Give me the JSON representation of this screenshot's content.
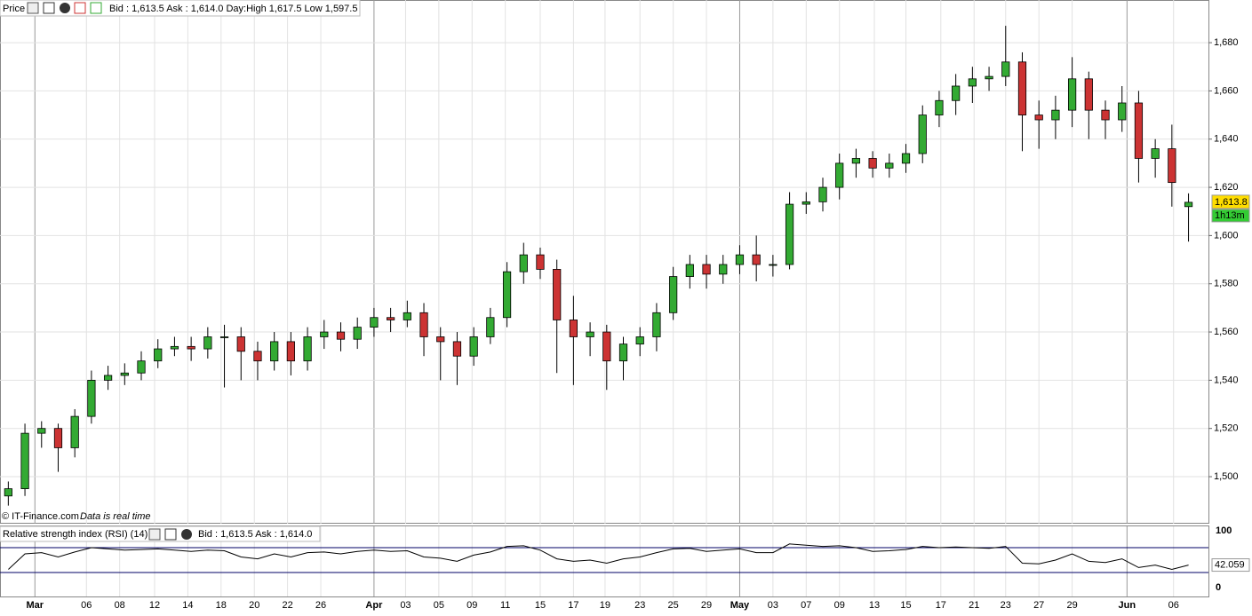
{
  "header": {
    "title": "Price",
    "quote": "Bid : 1,613.5 Ask : 1,614.0 Day:High 1,617.5 Low 1,597.5"
  },
  "footer": {
    "source": "© IT-Finance.com",
    "note": "Data is real time"
  },
  "chart_data": [
    {
      "type": "candlestick",
      "grid": true,
      "up_color": "#33aa33",
      "down_color": "#cc3333",
      "x": [
        0,
        1,
        2,
        3,
        4,
        5,
        6,
        7,
        8,
        9,
        10,
        11,
        12,
        13,
        14,
        15,
        16,
        17,
        18,
        19,
        20,
        21,
        22,
        23,
        24,
        25,
        26,
        27,
        28,
        29,
        30,
        31,
        32,
        33,
        34,
        35,
        36,
        37,
        38,
        39,
        40,
        41,
        42,
        43,
        44,
        45,
        46,
        47,
        48,
        49,
        50,
        51,
        52,
        53,
        54,
        55,
        56,
        57,
        58,
        59,
        60,
        61,
        62,
        63,
        64,
        65,
        66,
        67,
        68,
        69,
        70,
        71
      ],
      "open": [
        1492,
        1495,
        1518,
        1520,
        1512,
        1525,
        1540,
        1542,
        1543,
        1548,
        1553,
        1554,
        1553,
        1558,
        1558,
        1552,
        1548,
        1556,
        1548,
        1558,
        1560,
        1557,
        1562,
        1566,
        1565,
        1568,
        1558,
        1556,
        1550,
        1558,
        1566,
        1585,
        1592,
        1586,
        1565,
        1558,
        1560,
        1548,
        1555,
        1558,
        1568,
        1583,
        1588,
        1584,
        1588,
        1592,
        1588,
        1588,
        1613,
        1614,
        1620,
        1630,
        1632,
        1628,
        1630,
        1634,
        1650,
        1656,
        1662,
        1665,
        1666,
        1672,
        1650,
        1648,
        1652,
        1665,
        1652,
        1648,
        1655,
        1632,
        1636,
        1612
      ],
      "high": [
        1498,
        1522,
        1523,
        1522,
        1528,
        1544,
        1546,
        1547,
        1552,
        1557,
        1558,
        1558,
        1562,
        1563,
        1562,
        1556,
        1560,
        1560,
        1562,
        1565,
        1564,
        1566,
        1570,
        1570,
        1573,
        1572,
        1562,
        1560,
        1562,
        1570,
        1589,
        1597,
        1595,
        1590,
        1575,
        1564,
        1563,
        1558,
        1562,
        1572,
        1587,
        1592,
        1592,
        1592,
        1596,
        1600,
        1592,
        1618,
        1618,
        1624,
        1634,
        1636,
        1635,
        1634,
        1638,
        1654,
        1660,
        1667,
        1670,
        1670,
        1687,
        1676,
        1656,
        1658,
        1674,
        1668,
        1656,
        1662,
        1660,
        1640,
        1646,
        1617.5
      ],
      "low": [
        1488,
        1492,
        1512,
        1502,
        1508,
        1522,
        1536,
        1538,
        1540,
        1545,
        1550,
        1548,
        1549,
        1537,
        1540,
        1540,
        1544,
        1542,
        1544,
        1553,
        1552,
        1553,
        1558,
        1560,
        1562,
        1550,
        1540,
        1538,
        1546,
        1555,
        1562,
        1580,
        1582,
        1543,
        1538,
        1550,
        1536,
        1540,
        1550,
        1552,
        1565,
        1578,
        1578,
        1580,
        1584,
        1581,
        1583,
        1586,
        1609,
        1610,
        1615,
        1624,
        1624,
        1624,
        1626,
        1630,
        1645,
        1650,
        1655,
        1660,
        1662,
        1635,
        1636,
        1640,
        1645,
        1640,
        1640,
        1643,
        1622,
        1624,
        1612,
        1597.5
      ],
      "close": [
        1495,
        1518,
        1520,
        1512,
        1525,
        1540,
        1542,
        1543,
        1548,
        1553,
        1554,
        1553,
        1558,
        1558,
        1552,
        1548,
        1556,
        1548,
        1558,
        1560,
        1557,
        1562,
        1566,
        1565,
        1568,
        1558,
        1556,
        1550,
        1558,
        1566,
        1585,
        1592,
        1586,
        1565,
        1558,
        1560,
        1548,
        1555,
        1558,
        1568,
        1583,
        1588,
        1584,
        1588,
        1592,
        1588,
        1588,
        1613,
        1614,
        1620,
        1630,
        1632,
        1628,
        1630,
        1634,
        1650,
        1656,
        1662,
        1665,
        1666,
        1672,
        1650,
        1648,
        1652,
        1665,
        1652,
        1648,
        1655,
        1632,
        1636,
        1622,
        1613.8
      ],
      "last_price_label": "1,613.8",
      "countdown": "1h13m",
      "xlim": [
        -0.5,
        72.2
      ],
      "ylim": [
        1480.5,
        1697.7
      ],
      "yticks": [
        {
          "value": 1500,
          "label": "1,500"
        },
        {
          "value": 1520,
          "label": "1,520"
        },
        {
          "value": 1540,
          "label": "1,540"
        },
        {
          "value": 1560,
          "label": "1,560"
        },
        {
          "value": 1580,
          "label": "1,580"
        },
        {
          "value": 1600,
          "label": "1,600"
        },
        {
          "value": 1620,
          "label": "1,620"
        },
        {
          "value": 1640,
          "label": "1,640"
        },
        {
          "value": 1660,
          "label": "1,660"
        },
        {
          "value": 1680,
          "label": "1,680"
        }
      ],
      "xticks": [
        {
          "value": 1.6,
          "label": "Mar"
        },
        {
          "value": 4.7,
          "label": "06"
        },
        {
          "value": 6.7,
          "label": "08"
        },
        {
          "value": 8.8,
          "label": "12"
        },
        {
          "value": 10.8,
          "label": "14"
        },
        {
          "value": 12.8,
          "label": "18"
        },
        {
          "value": 14.8,
          "label": "20"
        },
        {
          "value": 16.8,
          "label": "22"
        },
        {
          "value": 18.8,
          "label": "26"
        },
        {
          "value": 22.0,
          "label": "Apr"
        },
        {
          "value": 23.9,
          "label": "03"
        },
        {
          "value": 25.9,
          "label": "05"
        },
        {
          "value": 27.9,
          "label": "09"
        },
        {
          "value": 29.9,
          "label": "11"
        },
        {
          "value": 32.0,
          "label": "15"
        },
        {
          "value": 34.0,
          "label": "17"
        },
        {
          "value": 35.9,
          "label": "19"
        },
        {
          "value": 38.0,
          "label": "23"
        },
        {
          "value": 40.0,
          "label": "25"
        },
        {
          "value": 42.0,
          "label": "29"
        },
        {
          "value": 44.0,
          "label": "May"
        },
        {
          "value": 46.0,
          "label": "03"
        },
        {
          "value": 48.0,
          "label": "07"
        },
        {
          "value": 50.0,
          "label": "09"
        },
        {
          "value": 52.1,
          "label": "13"
        },
        {
          "value": 54.0,
          "label": "15"
        },
        {
          "value": 56.1,
          "label": "17"
        },
        {
          "value": 58.1,
          "label": "21"
        },
        {
          "value": 60.0,
          "label": "23"
        },
        {
          "value": 62.0,
          "label": "27"
        },
        {
          "value": 64.0,
          "label": "29"
        },
        {
          "value": 67.3,
          "label": "Jun"
        },
        {
          "value": 70.1,
          "label": "06"
        }
      ]
    },
    {
      "type": "line",
      "title": "Relative strength index (RSI) (14)",
      "quote": "Bid : 1,613.5 Ask : 1,614.0",
      "color": "#000000",
      "level_color": "#000066",
      "x": [
        0,
        1,
        2,
        3,
        4,
        5,
        6,
        7,
        8,
        9,
        10,
        11,
        12,
        13,
        14,
        15,
        16,
        17,
        18,
        19,
        20,
        21,
        22,
        23,
        24,
        25,
        26,
        27,
        28,
        29,
        30,
        31,
        32,
        33,
        34,
        35,
        36,
        37,
        38,
        39,
        40,
        41,
        42,
        43,
        44,
        45,
        46,
        47,
        48,
        49,
        50,
        51,
        52,
        53,
        54,
        55,
        56,
        57,
        58,
        59,
        60,
        61,
        62,
        63,
        64,
        65,
        66,
        67,
        68,
        69,
        70,
        71
      ],
      "values": [
        35,
        60,
        62,
        55,
        63,
        70,
        68,
        66,
        67,
        68,
        66,
        64,
        66,
        65,
        55,
        52,
        60,
        55,
        62,
        63,
        60,
        64,
        66,
        64,
        65,
        55,
        53,
        48,
        58,
        63,
        72,
        73,
        66,
        52,
        48,
        50,
        45,
        52,
        55,
        62,
        68,
        69,
        64,
        66,
        68,
        62,
        62,
        76,
        74,
        72,
        73,
        70,
        64,
        65,
        67,
        72,
        70,
        71,
        70,
        69,
        72,
        45,
        44,
        50,
        60,
        48,
        46,
        52,
        38,
        42,
        35,
        42.059
      ],
      "xlim": [
        -0.5,
        72.2
      ],
      "ylim": [
        0,
        100
      ],
      "yticks": [
        0,
        100
      ],
      "levels": [
        70,
        30
      ]
    }
  ]
}
